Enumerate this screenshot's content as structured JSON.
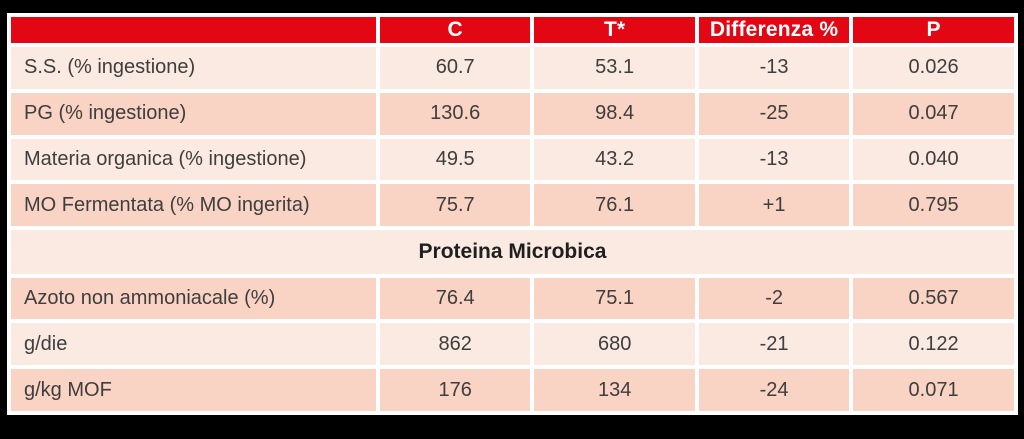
{
  "chart_data": {
    "type": "table",
    "columns": [
      "",
      "C",
      "T*",
      "Differenza %",
      "P"
    ],
    "rows": [
      {
        "label": "S.S. (% ingestione)",
        "values": [
          "60.7",
          "53.1",
          "-13",
          "0.026"
        ]
      },
      {
        "label": "PG (% ingestione)",
        "values": [
          "130.6",
          "98.4",
          "-25",
          "0.047"
        ]
      },
      {
        "label": "Materia organica (% ingestione)",
        "values": [
          "49.5",
          "43.2",
          "-13",
          "0.040"
        ]
      },
      {
        "label": "MO Fermentata (% MO ingerita)",
        "values": [
          "75.7",
          "76.1",
          "+1",
          "0.795"
        ]
      },
      {
        "label": "Proteina Microbica",
        "section": true
      },
      {
        "label": "Azoto non ammoniacale (%)",
        "values": [
          "76.4",
          "75.1",
          "-2",
          "0.567"
        ]
      },
      {
        "label": "g/die",
        "values": [
          "862",
          "680",
          "-21",
          "0.122"
        ]
      },
      {
        "label": "g/kg MOF",
        "values": [
          "176",
          "134",
          "-24",
          "0.071"
        ]
      }
    ],
    "colors": {
      "header_bg": "#e30613",
      "header_text": "#ffffff",
      "row_light": "#fbeae2",
      "row_dark": "#f9d3c3",
      "body_text": "#3e3e3e",
      "section_text": "#1f1f1f",
      "background": "#000000",
      "grid": "#ffffff"
    }
  }
}
